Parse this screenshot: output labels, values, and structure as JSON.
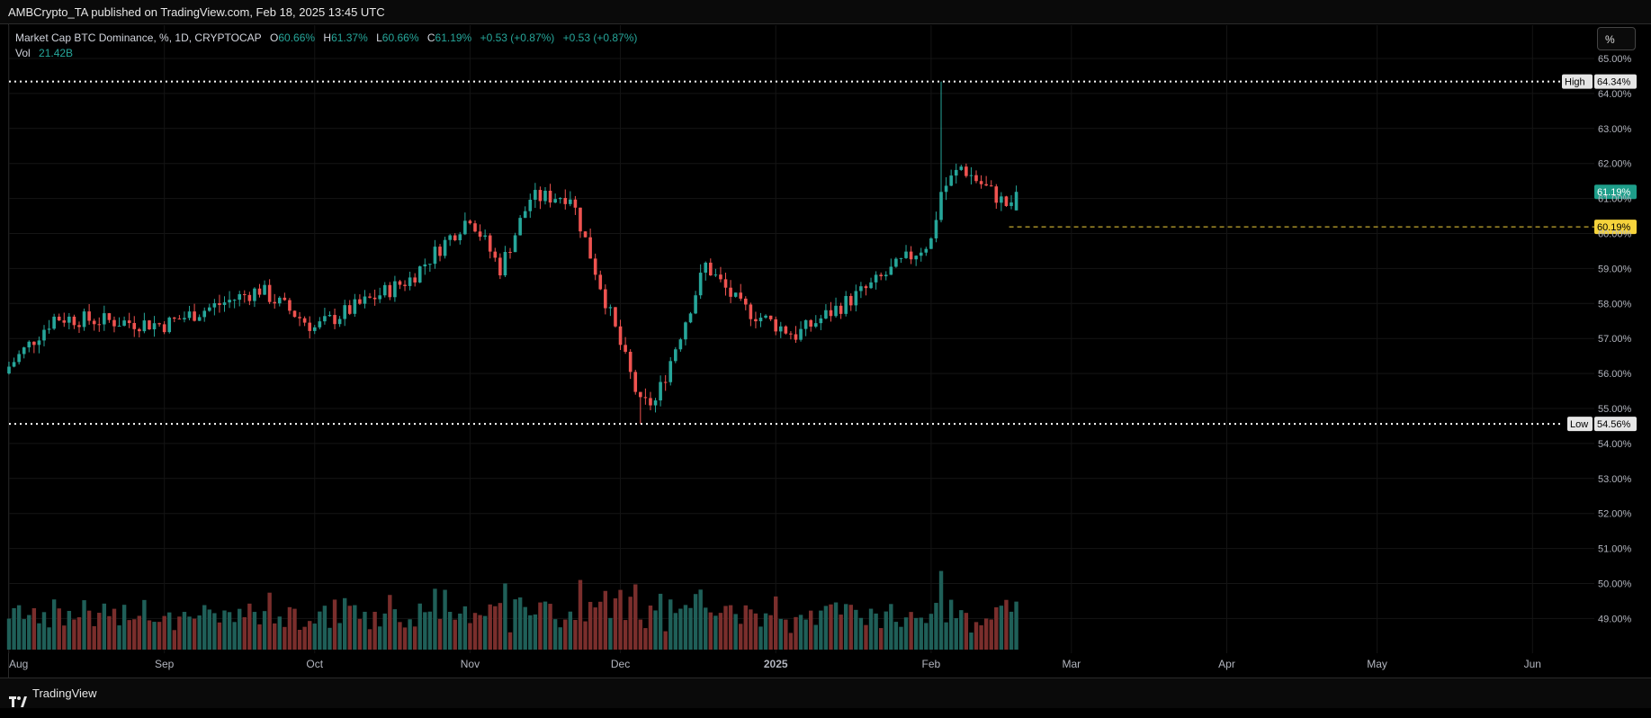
{
  "header": {
    "published_text": "AMBCrypto_TA published on TradingView.com, Feb 18, 2025 13:45 UTC"
  },
  "legend": {
    "symbol": "Market Cap BTC Dominance, %, 1D, CRYPTOCAP",
    "o_label": "O",
    "o_value": "60.66%",
    "h_label": "H",
    "h_value": "61.37%",
    "l_label": "L",
    "l_value": "60.66%",
    "c_label": "C",
    "c_value": "61.19%",
    "change": "+0.53 (+0.87%)",
    "change2": "+0.53 (+0.87%)",
    "vol_label": "Vol",
    "vol_value": "21.42B"
  },
  "scale_button": "%",
  "footer": {
    "brand": "TradingView"
  },
  "colors": {
    "up": "#26a69a",
    "down": "#ef5350",
    "vol_up": "#1f5f58",
    "vol_down": "#7a2e2c",
    "level_line": "#f5d33c",
    "current_badge": "#1e9e8a"
  },
  "chart_data": {
    "type": "candlestick",
    "series_name": "Market Cap BTC Dominance",
    "y_unit": "%",
    "ylim": [
      48.1,
      65.2
    ],
    "y_ticks": [
      "65.00%",
      "64.00%",
      "63.00%",
      "62.00%",
      "61.00%",
      "60.00%",
      "59.00%",
      "58.00%",
      "57.00%",
      "56.00%",
      "55.00%",
      "54.00%",
      "53.00%",
      "52.00%",
      "51.00%",
      "50.00%",
      "49.00%"
    ],
    "x_labels": [
      "Aug",
      "Sep",
      "Oct",
      "Nov",
      "Dec",
      "2025",
      "Feb",
      "Mar",
      "Apr",
      "May",
      "Jun"
    ],
    "high_label": "High",
    "high_value": "64.34%",
    "high": 64.34,
    "low_label": "Low",
    "low_value": "54.56%",
    "low": 54.56,
    "current_value": "61.19%",
    "current": 61.19,
    "level_value": "60.19%",
    "level": 60.19,
    "grid": true,
    "key_points": [
      {
        "date": "2024-08-01",
        "close": 56.2
      },
      {
        "date": "2024-08-10",
        "close": 57.6
      },
      {
        "date": "2024-09-01",
        "close": 57.4
      },
      {
        "date": "2024-09-20",
        "close": 58.4
      },
      {
        "date": "2024-10-01",
        "close": 57.3
      },
      {
        "date": "2024-10-20",
        "close": 58.7
      },
      {
        "date": "2024-11-01",
        "close": 60.5
      },
      {
        "date": "2024-11-07",
        "close": 59.0
      },
      {
        "date": "2024-11-13",
        "close": 61.0
      },
      {
        "date": "2024-11-21",
        "close": 61.1
      },
      {
        "date": "2024-12-05",
        "close": 55.1
      },
      {
        "date": "2024-12-08",
        "close": 55.2
      },
      {
        "date": "2024-12-18",
        "close": 59.1
      },
      {
        "date": "2024-12-25",
        "close": 57.9
      },
      {
        "date": "2025-01-05",
        "close": 57.1
      },
      {
        "date": "2025-01-20",
        "close": 58.5
      },
      {
        "date": "2025-02-01",
        "close": 59.8
      },
      {
        "date": "2025-02-03",
        "close": 61.2
      },
      {
        "date": "2025-02-07",
        "close": 61.9
      },
      {
        "date": "2025-02-17",
        "close": 60.7
      },
      {
        "date": "2025-02-18",
        "close": 61.19
      }
    ]
  }
}
